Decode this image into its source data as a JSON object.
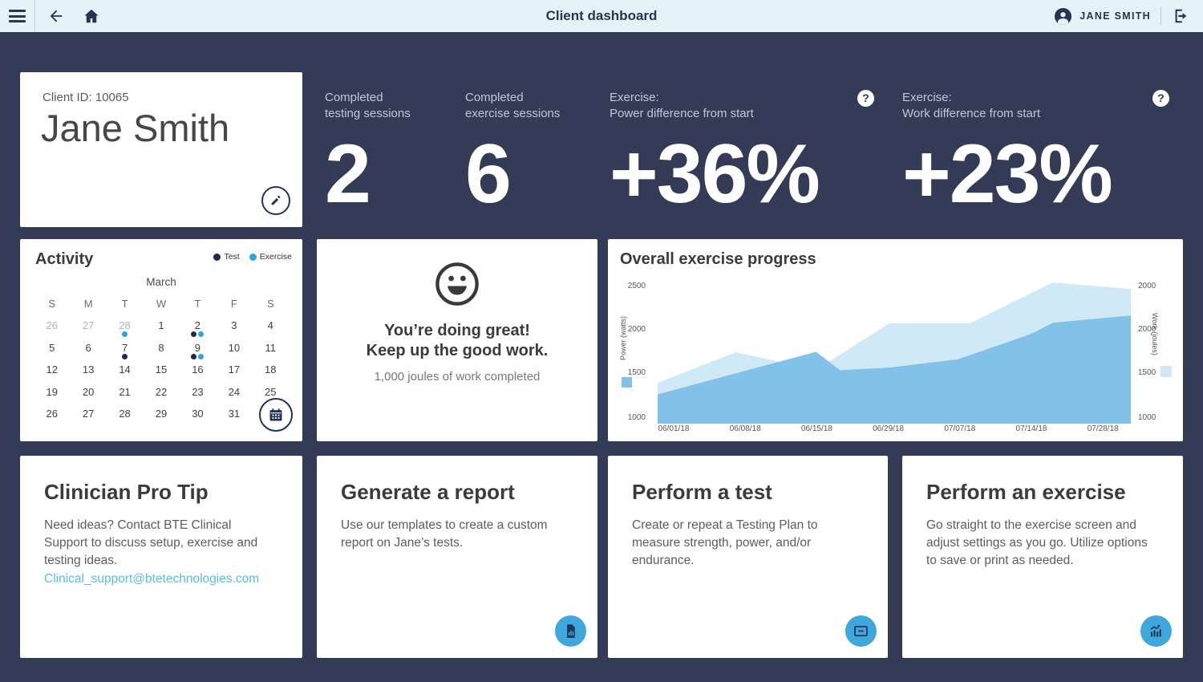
{
  "topbar": {
    "title": "Client dashboard",
    "user_name": "JANE SMITH"
  },
  "icons": {
    "help": "?"
  },
  "client": {
    "id_label": "Client ID: 10065",
    "name": "Jane Smith"
  },
  "stats": [
    {
      "label_line1": "Completed",
      "label_line2": "testing sessions",
      "value": "2"
    },
    {
      "label_line1": "Completed",
      "label_line2": "exercise sessions",
      "value": "6"
    },
    {
      "label_line1": "Exercise:",
      "label_line2": "Power difference from start",
      "value": "+36%"
    },
    {
      "label_line1": "Exercise:",
      "label_line2": "Work difference from start",
      "value": "+23%"
    }
  ],
  "activity": {
    "title": "Activity",
    "legend": [
      {
        "label": "Test",
        "color": "#1d2b4f"
      },
      {
        "label": "Exercise",
        "color": "#2fa3e0"
      }
    ],
    "month": "March",
    "day_headers": [
      "S",
      "M",
      "T",
      "W",
      "T",
      "F",
      "S"
    ],
    "weeks": [
      [
        {
          "day": "26",
          "muted": true
        },
        {
          "day": "27",
          "muted": true
        },
        {
          "day": "28",
          "muted": true,
          "dots": [
            "exercise"
          ]
        },
        {
          "day": "1"
        },
        {
          "day": "2",
          "dots": [
            "test",
            "exercise"
          ]
        },
        {
          "day": "3"
        },
        {
          "day": "4"
        }
      ],
      [
        {
          "day": "5"
        },
        {
          "day": "6"
        },
        {
          "day": "7",
          "dots": [
            "test"
          ]
        },
        {
          "day": "8"
        },
        {
          "day": "9",
          "dots": [
            "test",
            "exercise"
          ]
        },
        {
          "day": "10"
        },
        {
          "day": "11"
        }
      ],
      [
        {
          "day": "12"
        },
        {
          "day": "13"
        },
        {
          "day": "14"
        },
        {
          "day": "15"
        },
        {
          "day": "16"
        },
        {
          "day": "17"
        },
        {
          "day": "18"
        }
      ],
      [
        {
          "day": "19"
        },
        {
          "day": "20"
        },
        {
          "day": "21"
        },
        {
          "day": "22"
        },
        {
          "day": "23"
        },
        {
          "day": "24"
        },
        {
          "day": "25"
        }
      ],
      [
        {
          "day": "26"
        },
        {
          "day": "27"
        },
        {
          "day": "28"
        },
        {
          "day": "29"
        },
        {
          "day": "30"
        },
        {
          "day": "31"
        },
        {
          "calendar_button": true
        }
      ]
    ]
  },
  "encouragement": {
    "line1": "You’re doing great!",
    "line2": "Keep up the good work.",
    "subtext": "1,000 joules of work completed"
  },
  "chart_data": {
    "type": "area",
    "title": "Overall exercise progress",
    "x_tick_labels": [
      "06/01/18",
      "06/08/18",
      "06/15/18",
      "06/29/18",
      "07/07/18",
      "07/14/18",
      "07/28/18"
    ],
    "left_axis": {
      "label": "Power (watts)",
      "ticks": [
        "2500",
        "2000",
        "1500",
        "1000"
      ],
      "range": [
        1000,
        2500
      ]
    },
    "right_axis": {
      "label": "Work (joules)",
      "ticks": [
        "2000",
        "2000",
        "1500",
        "1000"
      ]
    },
    "grid": false,
    "series": [
      {
        "name": "Work (joules)",
        "color": "#cfe9f7",
        "points": [
          {
            "x": 0.0,
            "v": 1400
          },
          {
            "x": 0.165,
            "v": 1750
          },
          {
            "x": 0.335,
            "v": 1550
          },
          {
            "x": 0.49,
            "v": 2080
          },
          {
            "x": 0.66,
            "v": 2080
          },
          {
            "x": 0.835,
            "v": 2545
          },
          {
            "x": 1.0,
            "v": 2470
          }
        ]
      },
      {
        "name": "Power (watts)",
        "color": "#82c2e8",
        "points": [
          {
            "x": 0.0,
            "v": 1270
          },
          {
            "x": 0.145,
            "v": 1480
          },
          {
            "x": 0.335,
            "v": 1755
          },
          {
            "x": 0.385,
            "v": 1545
          },
          {
            "x": 0.49,
            "v": 1575
          },
          {
            "x": 0.635,
            "v": 1670
          },
          {
            "x": 0.79,
            "v": 1960
          },
          {
            "x": 0.835,
            "v": 2085
          },
          {
            "x": 1.0,
            "v": 2170
          }
        ]
      }
    ]
  },
  "cards": [
    {
      "title": "Clinician Pro Tip",
      "body": "Need ideas?  Contact BTE Clinical Support to discuss setup, exercise and testing ideas.",
      "link": "Clinical_support@btetechnologies.com"
    },
    {
      "title": "Generate a report",
      "body": "Use our templates to create a custom report on Jane’s tests."
    },
    {
      "title": "Perform a test",
      "body": "Create or repeat a Testing Plan to measure strength, power, and/or endurance."
    },
    {
      "title": "Perform an exercise",
      "body": "Go straight to the exercise screen and adjust settings as you go. Utilize options to save or print as needed."
    }
  ]
}
